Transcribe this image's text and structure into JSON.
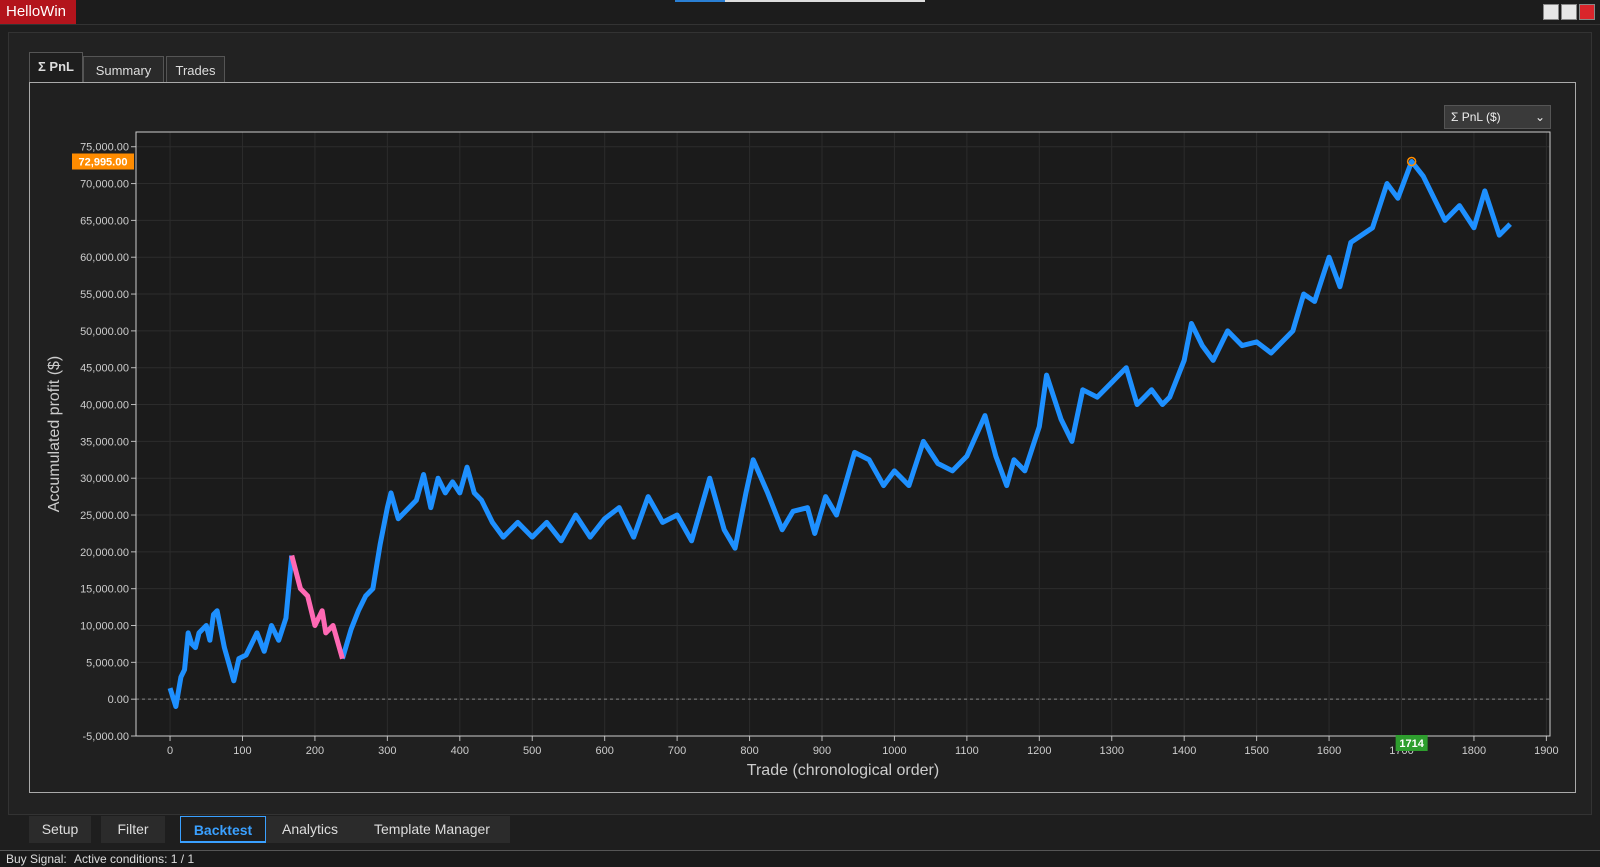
{
  "window": {
    "title": "HelloWin"
  },
  "tabs": [
    "Σ PnL",
    "Summary",
    "Trades"
  ],
  "dropdown": "Σ PnL ($)",
  "chart_data": {
    "type": "line",
    "x_label": "Trade (chronological order)",
    "y_label": "Accumulated profit ($)",
    "x": [
      0,
      8,
      15,
      20,
      25,
      30,
      35,
      40,
      50,
      55,
      60,
      65,
      75,
      88,
      95,
      105,
      110,
      120,
      130,
      140,
      150,
      160,
      168,
      180,
      190,
      200,
      210,
      215,
      225,
      238,
      250,
      260,
      270,
      280,
      290,
      300,
      305,
      315,
      330,
      340,
      350,
      360,
      370,
      380,
      390,
      400,
      410,
      420,
      430,
      445,
      460,
      480,
      500,
      520,
      540,
      560,
      580,
      600,
      620,
      640,
      660,
      680,
      700,
      720,
      745,
      765,
      780,
      795,
      805,
      825,
      845,
      860,
      880,
      890,
      905,
      920,
      945,
      965,
      985,
      1000,
      1020,
      1040,
      1060,
      1080,
      1100,
      1125,
      1140,
      1155,
      1165,
      1180,
      1200,
      1210,
      1230,
      1245,
      1260,
      1280,
      1300,
      1320,
      1335,
      1355,
      1370,
      1380,
      1400,
      1410,
      1425,
      1440,
      1460,
      1480,
      1500,
      1520,
      1530,
      1550,
      1565,
      1580,
      1600,
      1615,
      1630,
      1660,
      1680,
      1695,
      1714,
      1730,
      1760,
      1780,
      1800,
      1815,
      1835,
      1850
    ],
    "series": [
      {
        "color": "#1e90ff",
        "values": [
          1500,
          -1000,
          3000,
          4000,
          9000,
          7500,
          7000,
          9000,
          10000,
          8000,
          11500,
          12000,
          7000,
          2500,
          5500,
          6000,
          7000,
          9000,
          6500,
          10000,
          8000,
          11000,
          19500,
          null,
          null,
          null,
          null,
          null,
          null,
          5500,
          9500,
          12000,
          14000,
          15000,
          21000,
          26000,
          28000,
          24500,
          26000,
          27000,
          30500,
          26000,
          30000,
          28000,
          29500,
          28000,
          31500,
          28000,
          27000,
          24000,
          22000,
          24000,
          22000,
          24000,
          21500,
          25000,
          22000,
          24500,
          26000,
          22000,
          27500,
          24000,
          25000,
          21500,
          30000,
          23000,
          20500,
          28000,
          32500,
          28000,
          23000,
          25500,
          26000,
          22500,
          27500,
          25000,
          33500,
          32500,
          29000,
          31000,
          29000,
          35000,
          32000,
          31000,
          33000,
          38500,
          33000,
          29000,
          32500,
          31000,
          37000,
          44000,
          38000,
          35000,
          42000,
          41000,
          43000,
          45000,
          40000,
          42000,
          40000,
          41000,
          46000,
          51000,
          48000,
          46000,
          50000,
          48000,
          48500,
          47000,
          48000,
          50000,
          55000,
          54000,
          60000,
          56000,
          62000,
          64000,
          70000,
          68000,
          72995,
          71000,
          65000,
          67000,
          64000,
          69000,
          63000,
          64500
        ]
      },
      {
        "color": "#ff69b4",
        "values": [
          null,
          null,
          null,
          null,
          null,
          null,
          null,
          null,
          null,
          null,
          null,
          null,
          null,
          null,
          null,
          null,
          null,
          null,
          null,
          null,
          null,
          null,
          19500,
          15000,
          14000,
          10000,
          12000,
          9000,
          10000,
          5500,
          null,
          null,
          null,
          null,
          null,
          null,
          null,
          null,
          null,
          null,
          null,
          null,
          null,
          null,
          null,
          null,
          null,
          null,
          null,
          null,
          null,
          null,
          null,
          null,
          null,
          null,
          null,
          null,
          null,
          null,
          null,
          null,
          null,
          null,
          null,
          null,
          null,
          null,
          null,
          null,
          null,
          null,
          null,
          null,
          null,
          null,
          null,
          null,
          null,
          null,
          null,
          null,
          null,
          null,
          null,
          null,
          null,
          null,
          null,
          null,
          null,
          null,
          null,
          null,
          null,
          null,
          null,
          null,
          null,
          null,
          null,
          null,
          null,
          null,
          null,
          null,
          null,
          null,
          null,
          null,
          null,
          null,
          null,
          null,
          null,
          null,
          null,
          null,
          null,
          null,
          null,
          null,
          null,
          null,
          null,
          null,
          null,
          null
        ]
      }
    ],
    "xlim": [
      -47,
      1905
    ],
    "ylim": [
      -5000,
      77000
    ],
    "xticks": [
      0,
      100,
      200,
      300,
      400,
      500,
      600,
      700,
      800,
      900,
      1000,
      1100,
      1200,
      1300,
      1400,
      1500,
      1600,
      1700,
      1800,
      1900
    ],
    "yticks": [
      {
        "value": -5000,
        "label": "-5,000.00"
      },
      {
        "value": 0,
        "label": "0.00"
      },
      {
        "value": 5000,
        "label": "5,000.00"
      },
      {
        "value": 10000,
        "label": "10,000.00"
      },
      {
        "value": 15000,
        "label": "15,000.00"
      },
      {
        "value": 20000,
        "label": "20,000.00"
      },
      {
        "value": 25000,
        "label": "25,000.00"
      },
      {
        "value": 30000,
        "label": "30,000.00"
      },
      {
        "value": 35000,
        "label": "35,000.00"
      },
      {
        "value": 40000,
        "label": "40,000.00"
      },
      {
        "value": 45000,
        "label": "45,000.00"
      },
      {
        "value": 50000,
        "label": "50,000.00"
      },
      {
        "value": 55000,
        "label": "55,000.00"
      },
      {
        "value": 60000,
        "label": "60,000.00"
      },
      {
        "value": 65000,
        "label": "65,000.00"
      },
      {
        "value": 70000,
        "label": "70,000.00"
      },
      {
        "value": 75000,
        "label": "75,000.00"
      }
    ],
    "grid": true,
    "crosshair": {
      "x": 1714,
      "y": {
        "value": 72995,
        "label": "72,995.00"
      }
    }
  },
  "bottom_tabs": [
    "Setup",
    "Filter",
    "Backtest",
    "Analytics",
    "Template Manager"
  ],
  "status": [
    "Buy Signal:",
    "Active conditions: 1 / 1"
  ]
}
